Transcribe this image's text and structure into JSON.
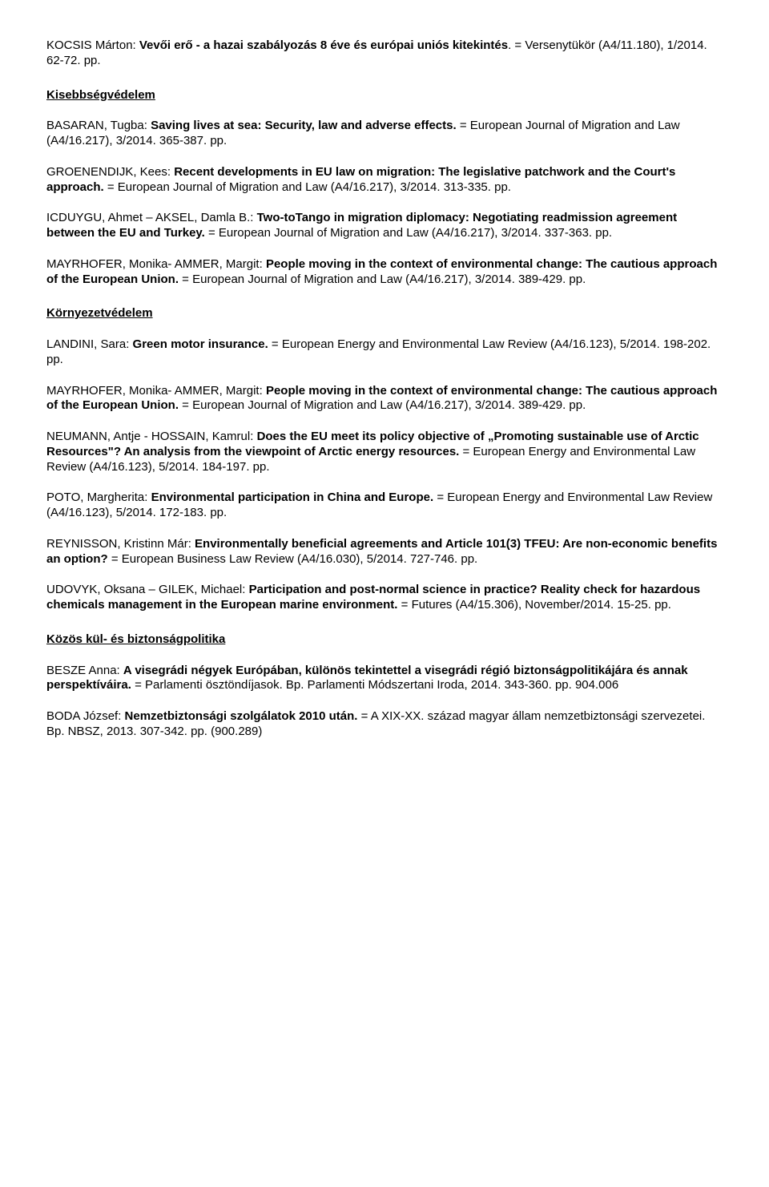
{
  "entries": [
    {
      "type": "entry",
      "parts": [
        {
          "t": "KOCSIS Márton: ",
          "b": false
        },
        {
          "t": "Vevői erő - a hazai szabályozás 8 éve és európai uniós kitekintés",
          "b": true
        },
        {
          "t": ". = Versenytükör (A4/11.180), 1/2014. 62-72. pp.",
          "b": false
        }
      ]
    },
    {
      "type": "heading",
      "text": "Kisebbségvédelem"
    },
    {
      "type": "entry",
      "parts": [
        {
          "t": "BASARAN, Tugba: ",
          "b": false
        },
        {
          "t": "Saving lives at sea: Security, law and adverse effects.",
          "b": true
        },
        {
          "t": " = European Journal of Migration and Law (A4/16.217), 3/2014. 365-387. pp.",
          "b": false
        }
      ]
    },
    {
      "type": "entry",
      "parts": [
        {
          "t": "GROENENDIJK, Kees: ",
          "b": false
        },
        {
          "t": "Recent developments in EU law on migration: The legislative patchwork and the Court's approach.",
          "b": true
        },
        {
          "t": " = European Journal of Migration and Law (A4/16.217), 3/2014. 313-335. pp.",
          "b": false
        }
      ]
    },
    {
      "type": "entry",
      "parts": [
        {
          "t": "ICDUYGU, Ahmet – AKSEL, Damla B.: ",
          "b": false
        },
        {
          "t": "Two-toTango in migration diplomacy: Negotiating readmission agreement between the EU and Turkey.",
          "b": true
        },
        {
          "t": " = European Journal of Migration and Law (A4/16.217), 3/2014. 337-363. pp.",
          "b": false
        }
      ]
    },
    {
      "type": "entry",
      "parts": [
        {
          "t": "MAYRHOFER, Monika- AMMER, Margit: ",
          "b": false
        },
        {
          "t": "People moving in the context of environmental change: The cautious approach of the European Union.",
          "b": true
        },
        {
          "t": " = European Journal of Migration and Law (A4/16.217), 3/2014. 389-429. pp.",
          "b": false
        }
      ]
    },
    {
      "type": "heading",
      "text": "Környezetvédelem"
    },
    {
      "type": "entry",
      "parts": [
        {
          "t": "LANDINI, Sara: ",
          "b": false
        },
        {
          "t": "Green motor insurance.",
          "b": true
        },
        {
          "t": " = European Energy and Environmental Law Review (A4/16.123), 5/2014. 198-202. pp.",
          "b": false
        }
      ]
    },
    {
      "type": "entry",
      "parts": [
        {
          "t": "MAYRHOFER, Monika- AMMER, Margit: ",
          "b": false
        },
        {
          "t": "People moving in the context of environmental change: The cautious approach of the European Union.",
          "b": true
        },
        {
          "t": " = European Journal of Migration and Law (A4/16.217), 3/2014. 389-429. pp.",
          "b": false
        }
      ]
    },
    {
      "type": "entry",
      "parts": [
        {
          "t": "NEUMANN, Antje - HOSSAIN, Kamrul: ",
          "b": false
        },
        {
          "t": "Does the EU meet its policy objective of „Promoting sustainable use of Arctic Resources\"? An analysis from the viewpoint of Arctic energy resources.",
          "b": true
        },
        {
          "t": " = European Energy and Environmental Law Review (A4/16.123), 5/2014. 184-197. pp.",
          "b": false
        }
      ]
    },
    {
      "type": "entry",
      "parts": [
        {
          "t": "POTO, Margherita: ",
          "b": false
        },
        {
          "t": "Environmental participation in China and Europe.",
          "b": true
        },
        {
          "t": " = European Energy and Environmental Law Review (A4/16.123), 5/2014. 172-183. pp.",
          "b": false
        }
      ]
    },
    {
      "type": "entry",
      "parts": [
        {
          "t": "REYNISSON, Kristinn Már: ",
          "b": false
        },
        {
          "t": "Environmentally beneficial agreements and Article 101(3) TFEU: Are non-economic benefits an option?",
          "b": true
        },
        {
          "t": " = European Business Law Review (A4/16.030), 5/2014. 727-746. pp.",
          "b": false
        }
      ]
    },
    {
      "type": "entry",
      "parts": [
        {
          "t": "UDOVYK, Oksana – GILEK, Michael: ",
          "b": false
        },
        {
          "t": "Participation and post-normal science in practice? Reality check for hazardous chemicals management in the European marine environment.",
          "b": true
        },
        {
          "t": " = Futures (A4/15.306), November/2014. 15-25. pp.",
          "b": false
        }
      ]
    },
    {
      "type": "heading",
      "text": "Közös kül- és biztonságpolitika"
    },
    {
      "type": "entry",
      "parts": [
        {
          "t": "BESZE Anna: ",
          "b": false
        },
        {
          "t": "A visegrádi négyek Európában, különös tekintettel a visegrádi régió biztonságpolitikájára és annak perspektíváira.",
          "b": true
        },
        {
          "t": " = Parlamenti ösztöndíjasok. Bp. Parlamenti Módszertani Iroda, 2014. 343-360. pp. 904.006",
          "b": false
        }
      ]
    },
    {
      "type": "entry",
      "parts": [
        {
          "t": "BODA József: ",
          "b": false
        },
        {
          "t": "Nemzetbiztonsági szolgálatok 2010 után.",
          "b": true
        },
        {
          "t": " = A XIX-XX. század magyar állam nemzetbiztonsági szervezetei. Bp. NBSZ, 2013. 307-342. pp. (900.289)",
          "b": false
        }
      ]
    }
  ]
}
